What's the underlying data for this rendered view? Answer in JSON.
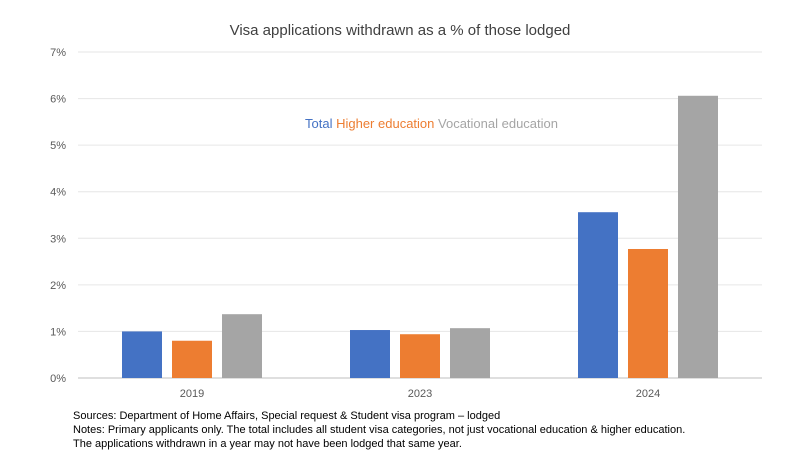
{
  "chart_data": {
    "type": "bar",
    "title": "Visa applications withdrawn as a % of those lodged",
    "categories": [
      "2019",
      "2023",
      "2024"
    ],
    "series": [
      {
        "name": "Total",
        "color": "#4472C4",
        "values": [
          1.0,
          1.03,
          3.56
        ]
      },
      {
        "name": "Higher education",
        "color": "#ED7D31",
        "values": [
          0.8,
          0.94,
          2.77
        ]
      },
      {
        "name": "Vocational education",
        "color": "#A5A5A5",
        "values": [
          1.37,
          1.07,
          6.06
        ]
      }
    ],
    "ylim": [
      0,
      7
    ],
    "yticks": [
      "0%",
      "1%",
      "2%",
      "3%",
      "4%",
      "5%",
      "6%",
      "7%"
    ],
    "xlabel": "",
    "ylabel": "",
    "grid": true,
    "legend_position": "top-center"
  },
  "notes": [
    "Sources: Department of Home Affairs, Special request & Student visa program – lodged",
    "Notes: Primary applicants only.  The total includes all student visa categories, not just vocational education & higher education.",
    "The applications withdrawn in a year may not have been lodged that same year."
  ]
}
